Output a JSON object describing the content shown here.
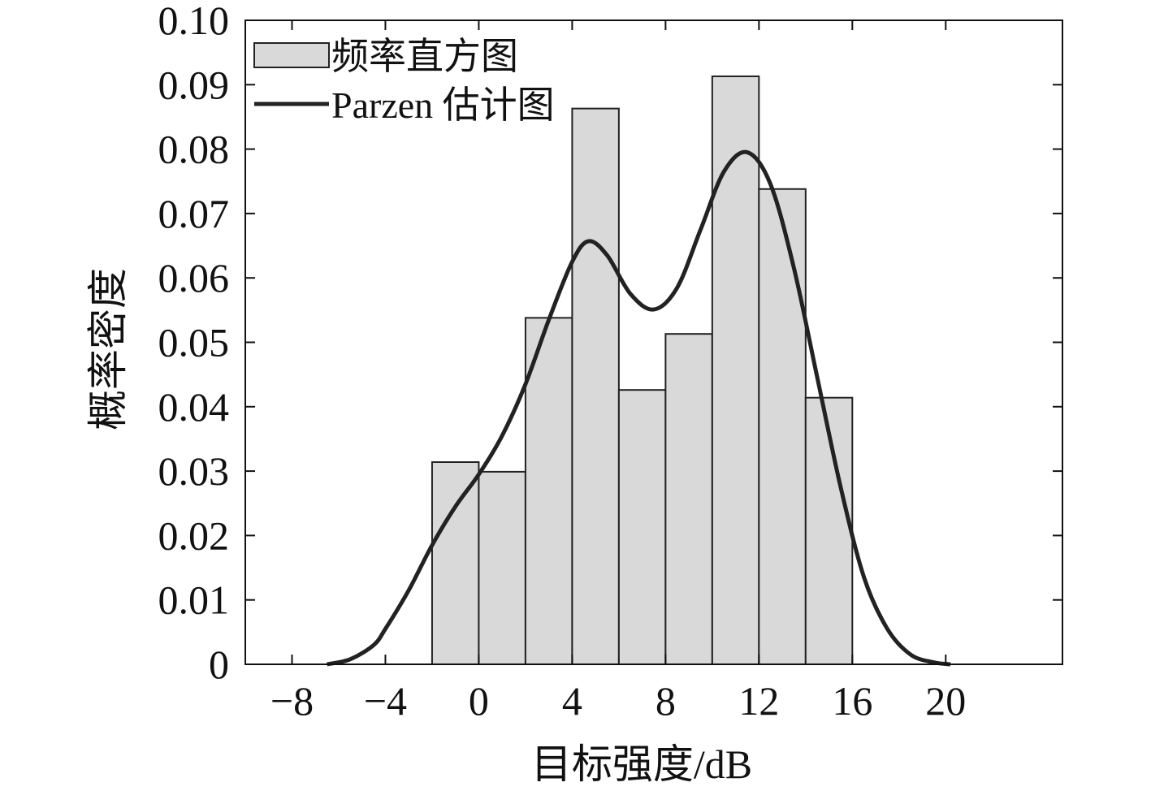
{
  "chart_data": {
    "type": "bar",
    "xlabel": "目标强度/dB",
    "ylabel": "概率密度",
    "xlim": [
      -10,
      25
    ],
    "ylim": [
      0,
      0.1
    ],
    "xticks": [
      -8,
      -4,
      0,
      4,
      8,
      12,
      16,
      20
    ],
    "xtick_labels": [
      "−8",
      "−4",
      "0",
      "4",
      "8",
      "12",
      "16",
      "20"
    ],
    "yticks": [
      0,
      0.01,
      0.02,
      0.03,
      0.04,
      0.05,
      0.06,
      0.07,
      0.08,
      0.09,
      0.1
    ],
    "ytick_labels": [
      "0",
      "0.01",
      "0.02",
      "0.03",
      "0.04",
      "0.05",
      "0.06",
      "0.07",
      "0.08",
      "0.09",
      "0.10"
    ],
    "grid": false,
    "legend_placement": "top-left",
    "histogram": {
      "name": "频率直方图",
      "bin_edges": [
        -2,
        0,
        2,
        4,
        6,
        8,
        10,
        12,
        14,
        16
      ],
      "values": [
        0.0314,
        0.0299,
        0.0538,
        0.0863,
        0.0426,
        0.0513,
        0.0913,
        0.0738,
        0.0414
      ],
      "color": "#d9d9d9"
    },
    "curve": {
      "name": "Parzen 估计图",
      "x": [
        -6.5,
        -5.5,
        -4.5,
        -4,
        -3,
        -2,
        -1,
        0,
        1,
        2,
        3,
        4,
        4.7,
        5.5,
        6.5,
        7.5,
        8.5,
        9.5,
        10.5,
        11.5,
        12.5,
        13.5,
        14.5,
        15.5,
        16.5,
        17.5,
        18.5,
        19.5,
        20.2
      ],
      "y": [
        0,
        0.0008,
        0.003,
        0.0055,
        0.0115,
        0.0185,
        0.0245,
        0.0295,
        0.0355,
        0.0435,
        0.0535,
        0.0625,
        0.0657,
        0.0635,
        0.0575,
        0.0551,
        0.0585,
        0.0675,
        0.0765,
        0.0795,
        0.0745,
        0.0615,
        0.0445,
        0.0275,
        0.0135,
        0.0055,
        0.0015,
        0.0003,
        0
      ],
      "color": "#222222"
    }
  }
}
